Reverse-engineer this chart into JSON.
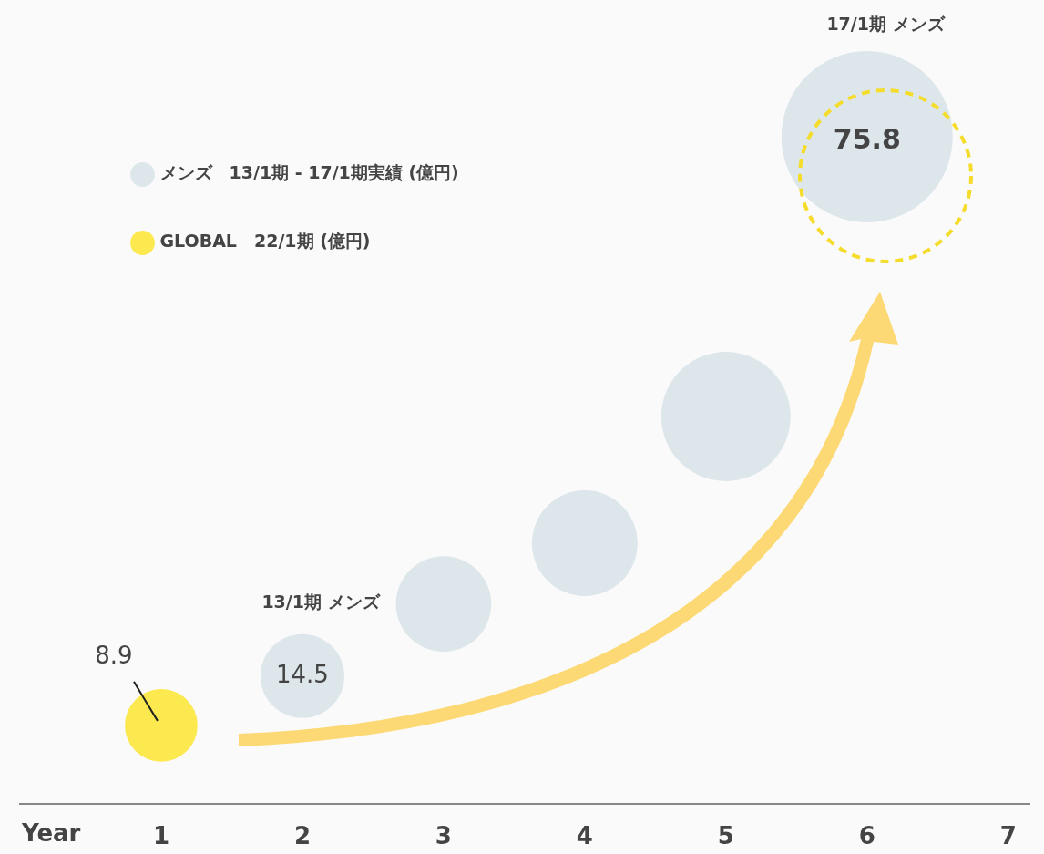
{
  "chart_data": {
    "type": "bubble",
    "xlabel": "Year",
    "xlim": [
      0,
      7.15
    ],
    "xticks": [
      1,
      2,
      3,
      4,
      5,
      6,
      7
    ],
    "legend": "top left",
    "series": [
      {
        "name": "メンズ　13/1期 - 17/1期実績 (億円)",
        "color": "#dde6ea",
        "x": [
          2,
          3,
          4,
          5,
          6
        ],
        "values": [
          14.5,
          22.7,
          29.6,
          44,
          75.8
        ],
        "sizes": [
          0.24,
          0.31,
          0.38,
          0.57,
          1
        ],
        "value_labels": [
          "14.5",
          null,
          null,
          null,
          "75.8"
        ]
      },
      {
        "name": "GLOBAL　22/1期 (億円)",
        "color": "#fce94f",
        "x": [
          1
        ],
        "values": [
          8.9
        ],
        "sizes": [
          0.18
        ],
        "value_labels": [
          "8.9"
        ]
      }
    ],
    "annotations": [
      "13/1期 メンズ",
      "17/1期 メンズ"
    ]
  }
}
